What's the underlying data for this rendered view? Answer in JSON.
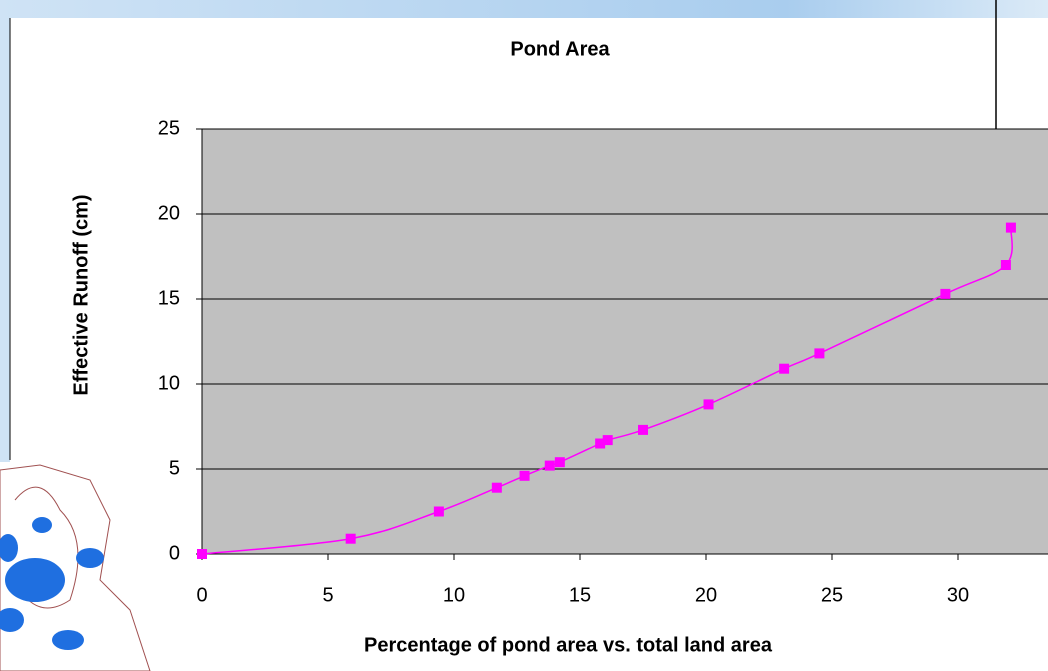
{
  "chart_data": {
    "type": "line",
    "title": "Pond Area",
    "x_label": "Percentage of pond area vs. total land area",
    "y_label": "Effective Runoff (cm)",
    "series": [
      {
        "color": "#ff00ff",
        "x": [
          0,
          5.9,
          9.4,
          11.7,
          12.8,
          13.8,
          14.2,
          15.8,
          16.1,
          17.5,
          20.1,
          23.1,
          24.5,
          29.5,
          31.9,
          32.1
        ],
        "values": [
          0,
          0.9,
          2.5,
          3.9,
          4.6,
          5.2,
          5.4,
          6.5,
          6.7,
          7.3,
          8.8,
          10.9,
          11.8,
          15.3,
          17.0,
          19.2
        ]
      }
    ],
    "xlim": [
      0,
      35
    ],
    "xticks": [
      0,
      5,
      10,
      15,
      20,
      25,
      30
    ],
    "ylim": [
      0,
      25
    ],
    "yticks": [
      0,
      5,
      10,
      15,
      20,
      25
    ],
    "grid": true
  }
}
